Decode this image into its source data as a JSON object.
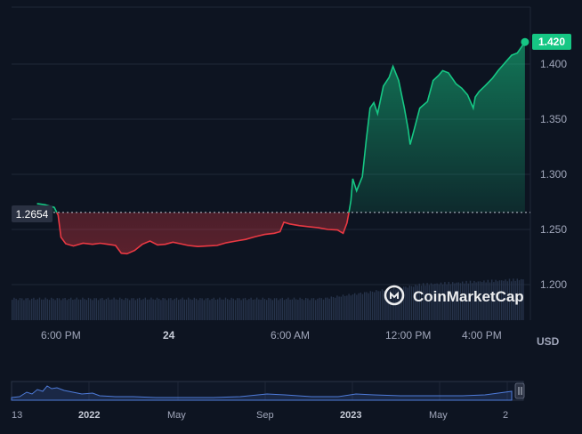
{
  "chart_data": {
    "type": "area",
    "currency_label": "USD",
    "watermark": "CoinMarketCap",
    "reference_price": "1.2654",
    "current_price": "1.420",
    "ylim": [
      1.17,
      1.455
    ],
    "y_ticks": [
      "1.400",
      "1.350",
      "1.300",
      "1.250",
      "1.200"
    ],
    "x_ticks": [
      {
        "label": "6:00 PM",
        "bold": false
      },
      {
        "label": "24",
        "bold": true
      },
      {
        "label": "6:00 AM",
        "bold": false
      },
      {
        "label": "12:00 PM",
        "bold": false
      },
      {
        "label": "4:00 PM",
        "bold": false
      }
    ],
    "x_hours": [
      0,
      6,
      12,
      18,
      22
    ],
    "series": [
      {
        "values": [
          [
            -0.9,
            1.2735
          ],
          [
            -0.5,
            1.2725
          ],
          [
            0,
            1.27
          ],
          [
            0.2,
            1.263
          ],
          [
            0.35,
            1.243
          ],
          [
            0.6,
            1.237
          ],
          [
            1.0,
            1.235
          ],
          [
            1.5,
            1.2375
          ],
          [
            2,
            1.2365
          ],
          [
            2.4,
            1.2375
          ],
          [
            2.8,
            1.2365
          ],
          [
            3.2,
            1.2355
          ],
          [
            3.5,
            1.2285
          ],
          [
            3.8,
            1.228
          ],
          [
            4.2,
            1.231
          ],
          [
            4.6,
            1.2365
          ],
          [
            5.0,
            1.2395
          ],
          [
            5.4,
            1.236
          ],
          [
            5.8,
            1.2365
          ],
          [
            6.2,
            1.2385
          ],
          [
            6.6,
            1.237
          ],
          [
            7,
            1.2355
          ],
          [
            7.5,
            1.2345
          ],
          [
            8,
            1.235
          ],
          [
            8.5,
            1.2355
          ],
          [
            9,
            1.238
          ],
          [
            9.5,
            1.2395
          ],
          [
            10,
            1.241
          ],
          [
            10.5,
            1.2435
          ],
          [
            11,
            1.2455
          ],
          [
            11.5,
            1.2465
          ],
          [
            11.8,
            1.248
          ],
          [
            12,
            1.2565
          ],
          [
            12.3,
            1.255
          ],
          [
            12.8,
            1.2535
          ],
          [
            13.3,
            1.2525
          ],
          [
            13.8,
            1.2515
          ],
          [
            14.3,
            1.25
          ],
          [
            14.8,
            1.2495
          ],
          [
            15.1,
            1.2465
          ],
          [
            15.3,
            1.256
          ],
          [
            15.4,
            1.2655
          ],
          [
            15.5,
            1.276
          ],
          [
            15.6,
            1.296
          ],
          [
            15.8,
            1.285
          ],
          [
            16.1,
            1.298
          ],
          [
            16.3,
            1.33
          ],
          [
            16.5,
            1.36
          ],
          [
            16.7,
            1.365
          ],
          [
            16.9,
            1.355
          ],
          [
            17.2,
            1.38
          ],
          [
            17.5,
            1.388
          ],
          [
            17.7,
            1.398
          ],
          [
            18.0,
            1.385
          ],
          [
            18.3,
            1.36
          ],
          [
            18.5,
            1.34
          ],
          [
            18.6,
            1.327
          ],
          [
            18.8,
            1.34
          ],
          [
            19.1,
            1.36
          ],
          [
            19.5,
            1.366
          ],
          [
            19.8,
            1.385
          ],
          [
            20.1,
            1.39
          ],
          [
            20.3,
            1.394
          ],
          [
            20.6,
            1.392
          ],
          [
            21.0,
            1.382
          ],
          [
            21.3,
            1.378
          ],
          [
            21.6,
            1.372
          ],
          [
            21.9,
            1.36
          ],
          [
            22.0,
            1.37
          ],
          [
            22.2,
            1.375
          ],
          [
            22.5,
            1.38
          ],
          [
            22.9,
            1.387
          ],
          [
            23.2,
            1.394
          ],
          [
            23.6,
            1.402
          ],
          [
            23.9,
            1.408
          ],
          [
            24.2,
            1.41
          ],
          [
            24.4,
            1.415
          ],
          [
            24.6,
            1.42
          ]
        ]
      },
      {
        "values": [
          [
            -0.9,
            1.2735
          ],
          [
            -0.5,
            1.2725
          ],
          [
            0,
            1.27
          ],
          [
            0.2,
            1.263
          ],
          [
            0.35,
            1.243
          ],
          [
            0.6,
            1.237
          ],
          [
            1.0,
            1.235
          ],
          [
            1.5,
            1.2375
          ],
          [
            2,
            1.2365
          ],
          [
            2.4,
            1.2375
          ],
          [
            2.8,
            1.2365
          ],
          [
            3.2,
            1.2355
          ],
          [
            3.5,
            1.2285
          ],
          [
            3.8,
            1.228
          ],
          [
            4.2,
            1.231
          ],
          [
            4.6,
            1.2365
          ],
          [
            5.0,
            1.2395
          ],
          [
            5.4,
            1.236
          ],
          [
            5.8,
            1.2365
          ],
          [
            6.2,
            1.2385
          ],
          [
            6.6,
            1.237
          ],
          [
            7,
            1.2355
          ],
          [
            7.5,
            1.2345
          ],
          [
            8,
            1.235
          ],
          [
            8.5,
            1.2355
          ],
          [
            9,
            1.238
          ],
          [
            9.5,
            1.2395
          ],
          [
            10,
            1.241
          ],
          [
            10.5,
            1.2435
          ],
          [
            11,
            1.2455
          ],
          [
            11.5,
            1.2465
          ],
          [
            11.8,
            1.248
          ],
          [
            12,
            1.2565
          ],
          [
            12.3,
            1.255
          ],
          [
            12.8,
            1.2535
          ],
          [
            13.3,
            1.2525
          ],
          [
            13.8,
            1.2515
          ],
          [
            14.3,
            1.25
          ],
          [
            14.8,
            1.2495
          ],
          [
            15.1,
            1.2465
          ],
          [
            15.3,
            1.256
          ],
          [
            15.4,
            1.2655
          ],
          [
            15.5,
            1.276
          ],
          [
            15.6,
            1.296
          ],
          [
            15.8,
            1.285
          ],
          [
            16.1,
            1.298
          ],
          [
            16.3,
            1.33
          ],
          [
            16.5,
            1.36
          ],
          [
            16.7,
            1.365
          ],
          [
            16.9,
            1.355
          ],
          [
            17.2,
            1.38
          ],
          [
            17.5,
            1.388
          ],
          [
            17.7,
            1.398
          ],
          [
            18.0,
            1.385
          ],
          [
            18.3,
            1.36
          ],
          [
            18.5,
            1.34
          ],
          [
            18.6,
            1.327
          ],
          [
            18.8,
            1.34
          ],
          [
            19.1,
            1.36
          ],
          [
            19.5,
            1.366
          ],
          [
            19.8,
            1.385
          ],
          [
            20.1,
            1.39
          ],
          [
            20.3,
            1.394
          ],
          [
            20.6,
            1.392
          ],
          [
            21.0,
            1.382
          ],
          [
            21.3,
            1.378
          ],
          [
            21.6,
            1.372
          ],
          [
            21.9,
            1.36
          ],
          [
            22.0,
            1.37
          ],
          [
            22.2,
            1.375
          ],
          [
            22.5,
            1.38
          ],
          [
            22.9,
            1.387
          ],
          [
            23.2,
            1.394
          ],
          [
            23.6,
            1.402
          ],
          [
            23.9,
            1.408
          ],
          [
            24.2,
            1.41
          ],
          [
            24.4,
            1.415
          ],
          [
            24.6,
            1.42
          ]
        ]
      }
    ],
    "colors": {
      "up": "#16c784",
      "down": "#ea3943",
      "volume": "#26334a",
      "grid": "#1f2738",
      "label_bg": "#2a3142",
      "navigator_line": "#4e7bd9"
    },
    "navigator": {
      "x_ticks": [
        {
          "label": "13",
          "bold": false
        },
        {
          "label": "2022",
          "bold": true
        },
        {
          "label": "May",
          "bold": false
        },
        {
          "label": "Sep",
          "bold": false
        },
        {
          "label": "2023",
          "bold": true
        },
        {
          "label": "May",
          "bold": false
        },
        {
          "label": "2",
          "bold": false
        }
      ]
    }
  }
}
